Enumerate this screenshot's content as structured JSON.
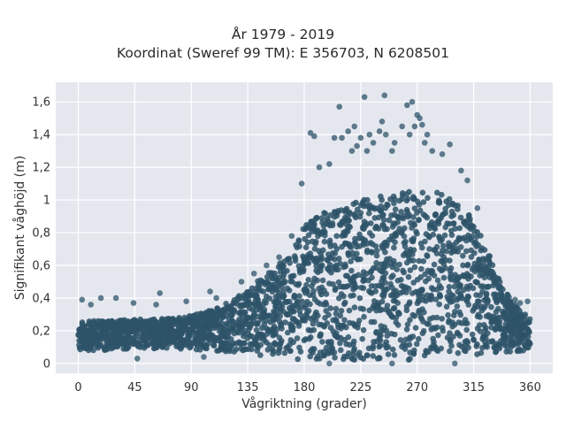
{
  "chart_data": {
    "type": "scatter",
    "title": "År 1979 - 2019",
    "subtitle": "Koordinat (Sweref 99 TM): E 356703, N 6208501",
    "xlabel": "Vågriktning (grader)",
    "ylabel": "Signifikant våghöjd (m)",
    "xlim": [
      -18,
      378
    ],
    "ylim": [
      -0.06,
      1.72
    ],
    "xticks": [
      0,
      45,
      90,
      135,
      180,
      225,
      270,
      315,
      360
    ],
    "xtick_labels": [
      "0",
      "45",
      "90",
      "135",
      "180",
      "225",
      "270",
      "315",
      "360"
    ],
    "yticks": [
      0,
      0.2,
      0.4,
      0.6,
      0.8,
      1.0,
      1.2,
      1.4,
      1.6
    ],
    "ytick_labels": [
      "0",
      "0,2",
      "0,4",
      "0,6",
      "0,8",
      "1",
      "1,2",
      "1,4",
      "1,6"
    ],
    "grid": true,
    "marker_color": "#2e5469",
    "background_color": "#e5e7ef",
    "envelope": {
      "direction": [
        0,
        20,
        40,
        60,
        80,
        100,
        120,
        135,
        150,
        165,
        180,
        195,
        210,
        225,
        240,
        255,
        270,
        285,
        300,
        315,
        330,
        345,
        360
      ],
      "lower_height": [
        0.08,
        0.08,
        0.09,
        0.09,
        0.09,
        0.08,
        0.07,
        0.06,
        0.04,
        0.03,
        0.02,
        0.02,
        0.02,
        0.02,
        0.02,
        0.02,
        0.02,
        0.03,
        0.03,
        0.04,
        0.06,
        0.07,
        0.08
      ],
      "upper_height": [
        0.26,
        0.26,
        0.27,
        0.27,
        0.28,
        0.31,
        0.38,
        0.45,
        0.55,
        0.64,
        0.84,
        0.92,
        0.96,
        1.0,
        1.02,
        1.05,
        1.05,
        1.05,
        1.0,
        0.88,
        0.62,
        0.38,
        0.28
      ]
    },
    "outliers": [
      [
        3,
        0.39
      ],
      [
        10,
        0.36
      ],
      [
        18,
        0.4
      ],
      [
        30,
        0.4
      ],
      [
        44,
        0.37
      ],
      [
        62,
        0.36
      ],
      [
        65,
        0.43
      ],
      [
        86,
        0.38
      ],
      [
        105,
        0.44
      ],
      [
        110,
        0.4
      ],
      [
        130,
        0.5
      ],
      [
        140,
        0.55
      ],
      [
        150,
        0.6
      ],
      [
        160,
        0.65
      ],
      [
        170,
        0.78
      ],
      [
        178,
        1.1
      ],
      [
        185,
        1.41
      ],
      [
        188,
        1.39
      ],
      [
        192,
        1.2
      ],
      [
        200,
        1.22
      ],
      [
        204,
        1.38
      ],
      [
        208,
        1.57
      ],
      [
        210,
        1.38
      ],
      [
        215,
        1.42
      ],
      [
        218,
        1.3
      ],
      [
        220,
        1.45
      ],
      [
        222,
        1.33
      ],
      [
        225,
        1.38
      ],
      [
        228,
        1.63
      ],
      [
        230,
        1.3
      ],
      [
        232,
        1.4
      ],
      [
        235,
        1.35
      ],
      [
        240,
        1.42
      ],
      [
        242,
        1.48
      ],
      [
        244,
        1.64
      ],
      [
        245,
        1.4
      ],
      [
        250,
        1.3
      ],
      [
        252,
        1.35
      ],
      [
        258,
        1.45
      ],
      [
        262,
        1.58
      ],
      [
        264,
        1.4
      ],
      [
        266,
        1.6
      ],
      [
        268,
        1.45
      ],
      [
        270,
        1.52
      ],
      [
        272,
        1.5
      ],
      [
        274,
        1.46
      ],
      [
        276,
        1.35
      ],
      [
        278,
        1.4
      ],
      [
        282,
        1.3
      ],
      [
        290,
        1.28
      ],
      [
        296,
        1.34
      ],
      [
        305,
        1.18
      ],
      [
        310,
        1.12
      ],
      [
        318,
        0.95
      ],
      [
        330,
        0.56
      ],
      [
        335,
        0.46
      ],
      [
        342,
        0.42
      ],
      [
        348,
        0.39
      ],
      [
        352,
        0.37
      ],
      [
        358,
        0.38
      ],
      [
        47,
        0.03
      ],
      [
        100,
        0.04
      ],
      [
        200,
        0.0
      ],
      [
        250,
        0.0
      ],
      [
        300,
        0.0
      ]
    ]
  }
}
